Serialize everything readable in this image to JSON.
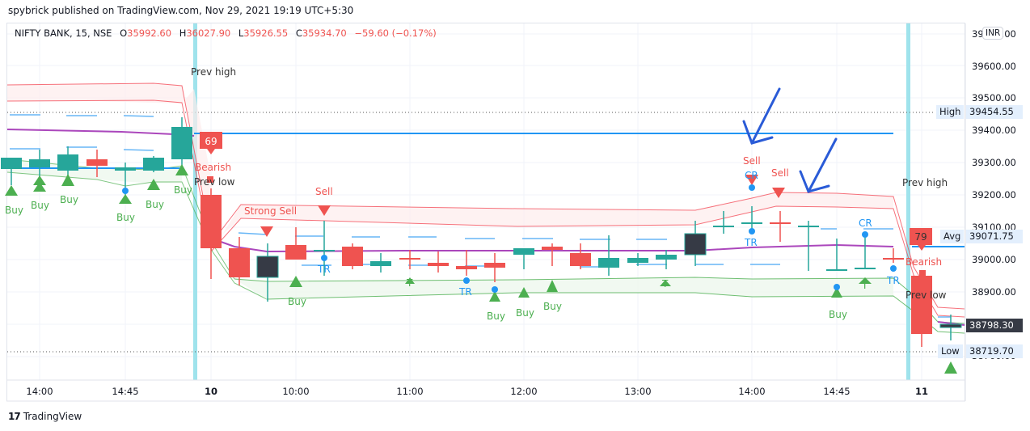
{
  "header": {
    "published": "spybrick published on TradingView.com, Nov 29, 2021 19:19 UTC+5:30"
  },
  "legend": {
    "symbol": "NIFTY BANK, 15, NSE",
    "o_label": "O",
    "o": "35992.60",
    "h_label": "H",
    "h": "36027.90",
    "l_label": "L",
    "l": "35926.55",
    "c_label": "C",
    "c": "35934.70",
    "change": "−59.60 (−0.17%)"
  },
  "currency_badge": "INR",
  "price_axis": {
    "ticks": [
      "39700.00",
      "39600.00",
      "39500.00",
      "39400.00",
      "39300.00",
      "39200.00",
      "39100.00",
      "39000.00",
      "38900.00",
      "38800.00",
      "38700.00"
    ],
    "tags": {
      "high_label": "High",
      "high_value": "39454.55",
      "avg_label": "Avg",
      "avg_value": "39071.75",
      "last_value": "38798.30",
      "low_label": "Low",
      "low_value": "38719.70"
    }
  },
  "time_axis": {
    "ticks": [
      "14:00",
      "14:45",
      "10",
      "10:00",
      "11:00",
      "12:00",
      "13:00",
      "14:00",
      "14:45",
      "11"
    ]
  },
  "annotations": {
    "prev_high_1": "Prev high",
    "prev_low_1": "Prev  low",
    "prev_high_2": "Prev high",
    "prev_low_2": "Prev low",
    "bearish_1_score": "69",
    "bearish_1_label": "Bearish",
    "bearish_2_score": "79",
    "bearish_2_label": "Bearish",
    "strong_sell": "Strong Sell",
    "sell": "Sell",
    "buy": "Buy",
    "tr": "TR",
    "cr": "CR",
    "t": "T"
  },
  "footer": {
    "logo_mark": "17",
    "brand": "TradingView"
  },
  "colors": {
    "bull": "#26a69a",
    "bear": "#ef5350",
    "doji_dark": "#363a45",
    "vwap": "#ab47bc",
    "band_upper": "#f23645",
    "band_lower": "#4caf50",
    "session_sep": "#9fe3ec",
    "blue_line": "#2196f3",
    "arrow": "#2a5bd7"
  },
  "chart_data": {
    "type": "candlestick",
    "title": "NIFTY BANK, 15, NSE",
    "xlabel": "",
    "ylabel": "INR",
    "ylim": [
      38650,
      39720
    ],
    "x": [
      "13:45",
      "14:00",
      "14:15",
      "14:30",
      "14:45",
      "15:00",
      "15:15",
      "09:15",
      "09:30",
      "09:45",
      "10:00",
      "10:15",
      "10:30",
      "10:45",
      "11:00",
      "11:15",
      "11:30",
      "11:45",
      "12:00",
      "12:15",
      "12:30",
      "12:45",
      "13:00",
      "13:15",
      "13:30",
      "13:45",
      "14:00",
      "14:15",
      "14:30",
      "14:45",
      "15:00",
      "15:15",
      "09:15",
      "09:30"
    ],
    "series": [
      {
        "name": "open",
        "values": [
          39290,
          39295,
          39285,
          39320,
          39285,
          39285,
          39320,
          39210,
          39045,
          38955,
          39055,
          39035,
          39050,
          38990,
          39015,
          39000,
          38990,
          39000,
          39025,
          39050,
          39030,
          38985,
          39000,
          39010,
          39025,
          39115,
          39125,
          39125,
          39115,
          38975,
          38985,
          39015,
          38960,
          38810
        ]
      },
      {
        "name": "high",
        "values": [
          39310,
          39350,
          39360,
          39350,
          39310,
          39330,
          39450,
          39230,
          39080,
          39060,
          39110,
          39130,
          39060,
          39030,
          39040,
          39035,
          39040,
          39030,
          39030,
          39060,
          39060,
          39085,
          39030,
          39040,
          39130,
          39160,
          39175,
          39160,
          39130,
          39075,
          39095,
          39045,
          38970,
          38840
        ]
      },
      {
        "name": "low",
        "values": [
          39240,
          39255,
          39260,
          39265,
          39210,
          39280,
          39290,
          38950,
          38930,
          38880,
          39010,
          38960,
          38980,
          38970,
          38980,
          38970,
          38960,
          38940,
          38980,
          38990,
          38980,
          38960,
          38990,
          38980,
          38990,
          39090,
          39095,
          39065,
          38975,
          38975,
          38980,
          39000,
          38740,
          38760
        ]
      },
      {
        "name": "close",
        "values": [
          39325,
          39320,
          39335,
          39300,
          39295,
          39325,
          39420,
          39045,
          38955,
          39020,
          39010,
          39040,
          38990,
          39005,
          39010,
          38990,
          38980,
          38985,
          39045,
          39040,
          38990,
          39015,
          39015,
          39025,
          39090,
          39115,
          39125,
          39120,
          39115,
          38980,
          38985,
          39010,
          38780,
          38800
        ]
      }
    ],
    "indicators": {
      "vwap": "purple line ~39380 prev day, ~39035 current day",
      "upper_band": "red shaded band",
      "lower_band": "green shaded band"
    },
    "horizontal_levels": {
      "high": 39454.55,
      "avg": 39071.75,
      "last": 38798.3,
      "low": 38719.7
    },
    "signals": [
      "Buy",
      "Buy",
      "Buy",
      "Buy",
      "Buy",
      "Buy",
      "Bearish 69",
      "Strong Sell",
      "Sell",
      "Buy",
      "TR",
      "T",
      "TR",
      "Buy",
      "Buy",
      "Buy",
      "T",
      "Sell",
      "CR",
      "TR",
      "Sell",
      "CR",
      "T",
      "TR",
      "Buy",
      "Bearish 79"
    ],
    "grid": true,
    "legend_position": "top-left"
  }
}
